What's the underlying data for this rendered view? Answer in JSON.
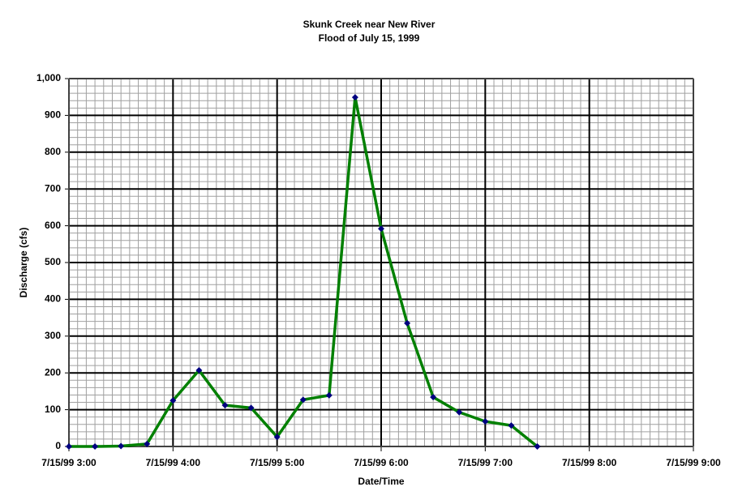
{
  "chart_data": {
    "type": "line",
    "title": [
      "Skunk Creek near New River",
      "Flood of July 15, 1999"
    ],
    "xlabel": "Date/Time",
    "ylabel": "Discharge (cfs)",
    "x": [
      "1999-07-15T03:00",
      "1999-07-15T03:15",
      "1999-07-15T03:30",
      "1999-07-15T03:45",
      "1999-07-15T04:00",
      "1999-07-15T04:15",
      "1999-07-15T04:30",
      "1999-07-15T04:45",
      "1999-07-15T05:00",
      "1999-07-15T05:15",
      "1999-07-15T05:30",
      "1999-07-15T05:45",
      "1999-07-15T06:00",
      "1999-07-15T06:15",
      "1999-07-15T06:30",
      "1999-07-15T06:45",
      "1999-07-15T07:00",
      "1999-07-15T07:15",
      "1999-07-15T07:30"
    ],
    "series": [
      {
        "name": "Discharge",
        "color": "#008000",
        "marker_color": "#000080",
        "values": [
          0,
          0,
          1,
          7,
          125,
          207,
          112,
          105,
          26,
          127,
          139,
          949,
          592,
          335,
          134,
          93,
          68,
          57,
          0
        ]
      }
    ],
    "xlim": [
      "1999-07-15T03:00",
      "1999-07-15T09:00"
    ],
    "xticks": [
      {
        "value": "1999-07-15T03:00",
        "label": "7/15/99 3:00"
      },
      {
        "value": "1999-07-15T04:00",
        "label": "7/15/99 4:00"
      },
      {
        "value": "1999-07-15T05:00",
        "label": "7/15/99 5:00"
      },
      {
        "value": "1999-07-15T06:00",
        "label": "7/15/99 6:00"
      },
      {
        "value": "1999-07-15T07:00",
        "label": "7/15/99 7:00"
      },
      {
        "value": "1999-07-15T08:00",
        "label": "7/15/99 8:00"
      },
      {
        "value": "1999-07-15T09:00",
        "label": "7/15/99 9:00"
      }
    ],
    "ylim": [
      0,
      1000
    ],
    "yticks": [
      0,
      100,
      200,
      300,
      400,
      500,
      600,
      700,
      800,
      900,
      {
        "value": 1000,
        "label": "1,000"
      }
    ],
    "grid": true,
    "minor_grid": true
  }
}
